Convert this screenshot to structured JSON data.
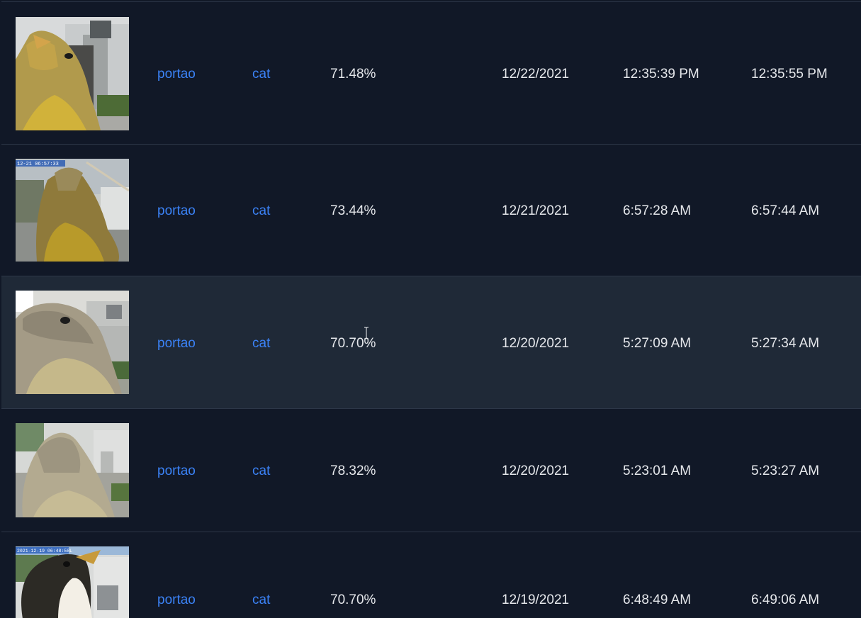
{
  "events": [
    {
      "camera": "portao",
      "label": "cat",
      "score": "71.48%",
      "date": "12/22/2021",
      "start_time": "12:35:39 PM",
      "end_time": "12:35:55 PM",
      "thumbnail": "bird-closeup-yellow"
    },
    {
      "camera": "portao",
      "label": "cat",
      "score": "73.44%",
      "date": "12/21/2021",
      "start_time": "6:57:28 AM",
      "end_time": "6:57:44 AM",
      "thumbnail": "bird-closeup-yellow-timestamp"
    },
    {
      "camera": "portao",
      "label": "cat",
      "score": "70.70%",
      "date": "12/20/2021",
      "start_time": "5:27:09 AM",
      "end_time": "5:27:34 AM",
      "thumbnail": "bird-closeup-grey"
    },
    {
      "camera": "portao",
      "label": "cat",
      "score": "78.32%",
      "date": "12/20/2021",
      "start_time": "5:23:01 AM",
      "end_time": "5:23:27 AM",
      "thumbnail": "bird-closeup-blurred"
    },
    {
      "camera": "portao",
      "label": "cat",
      "score": "70.70%",
      "date": "12/19/2021",
      "start_time": "6:48:49 AM",
      "end_time": "6:49:06 AM",
      "thumbnail": "bird-closeup-dark"
    }
  ],
  "thumb_timestamps": [
    "12-21 06:57:33",
    "2021-12-19 06:48:58L"
  ],
  "colors": {
    "background": "#111827",
    "row_hover": "#1f2937",
    "link": "#3b82f6",
    "text": "#e5e7eb"
  }
}
